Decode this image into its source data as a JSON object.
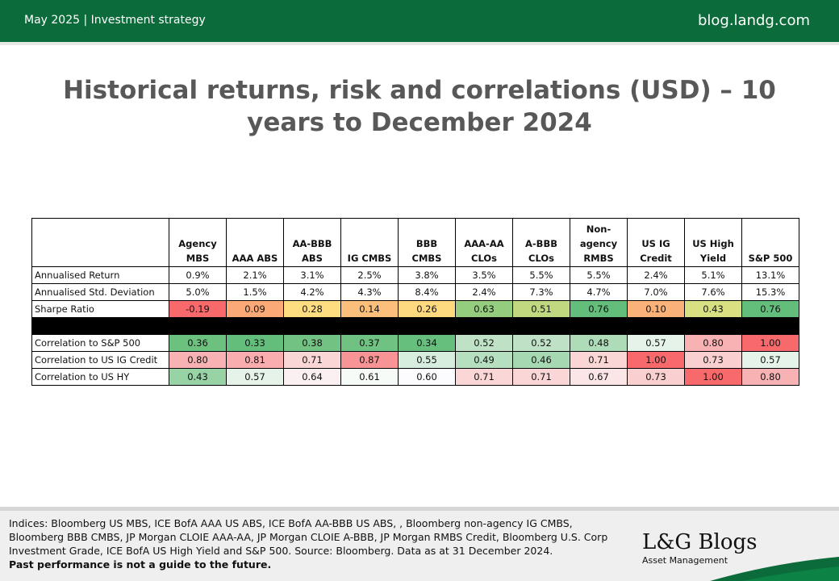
{
  "header": {
    "left_text": "May 2025 | Investment strategy",
    "right_text": "blog.landg.com",
    "brand_color": "#0b6b3a"
  },
  "title": "Historical returns, risk and correlations (USD) – 10 years to December 2024",
  "table": {
    "columns": [
      "Agency MBS",
      "AAA ABS",
      "AA-BBB ABS",
      "IG CMBS",
      "BBB CMBS",
      "AAA-AA CLOs",
      "A-BBB CLOs",
      "Non-agency RMBS",
      "US IG Credit",
      "US High Yield",
      "S&P 500"
    ],
    "rows": [
      {
        "label": "Annualised Return",
        "values": [
          "0.9%",
          "2.1%",
          "3.1%",
          "2.5%",
          "3.8%",
          "3.5%",
          "5.5%",
          "5.5%",
          "2.4%",
          "5.1%",
          "13.1%"
        ],
        "colors": [
          "",
          "",
          "",
          "",
          "",
          "",
          "",
          "",
          "",
          "",
          ""
        ]
      },
      {
        "label": "Annualised Std. Deviation",
        "values": [
          "5.0%",
          "1.5%",
          "4.2%",
          "4.3%",
          "8.4%",
          "2.4%",
          "7.3%",
          "4.7%",
          "7.0%",
          "7.6%",
          "15.3%"
        ],
        "colors": [
          "",
          "",
          "",
          "",
          "",
          "",
          "",
          "",
          "",
          "",
          ""
        ]
      },
      {
        "label": "Sharpe Ratio",
        "values": [
          "-0.19",
          "0.09",
          "0.28",
          "0.14",
          "0.26",
          "0.63",
          "0.51",
          "0.76",
          "0.10",
          "0.43",
          "0.76"
        ],
        "colors": [
          "#f8696b",
          "#fbaa77",
          "#fedd81",
          "#fcbf7b",
          "#fed980",
          "#94cd7e",
          "#c0d980",
          "#63be7b",
          "#fbb279",
          "#d9e082",
          "#63be7b"
        ]
      },
      {
        "label": "",
        "values": [],
        "colors": [],
        "black": true
      },
      {
        "label": "Correlation to S&P 500",
        "values": [
          "0.36",
          "0.33",
          "0.38",
          "0.37",
          "0.34",
          "0.52",
          "0.52",
          "0.48",
          "0.57",
          "0.80",
          "1.00"
        ],
        "colors": [
          "#6cc17f",
          "#63be7b",
          "#72c383",
          "#6fc281",
          "#66bf7d",
          "#bfe2c6",
          "#bfe2c6",
          "#aedbb8",
          "#e6f3e9",
          "#f9b2b3",
          "#f8696b"
        ]
      },
      {
        "label": "Correlation to US IG Credit",
        "values": [
          "0.80",
          "0.81",
          "0.71",
          "0.87",
          "0.55",
          "0.49",
          "0.46",
          "0.71",
          "1.00",
          "0.73",
          "0.57"
        ],
        "colors": [
          "#f9b2b3",
          "#f9adaf",
          "#fad6d7",
          "#f89496",
          "#d7edde",
          "#b6dfc0",
          "#a6d8b2",
          "#fad6d7",
          "#f8696b",
          "#facfd0",
          "#e6f3e9"
        ]
      },
      {
        "label": "Correlation to US HY",
        "values": [
          "0.43",
          "0.57",
          "0.64",
          "0.61",
          "0.60",
          "0.71",
          "0.71",
          "0.67",
          "0.73",
          "1.00",
          "0.80"
        ],
        "colors": [
          "#98d3a6",
          "#e6f3e9",
          "#fbf0f1",
          "#f7fbf8",
          "#fcfcff",
          "#fad6d7",
          "#fad6d7",
          "#fbe5e6",
          "#facfd0",
          "#f8696b",
          "#f9b2b3"
        ]
      }
    ]
  },
  "footer": {
    "notes": "Indices: Bloomberg US MBS, ICE BofA AAA US ABS, ICE BofA AA-BBB US ABS, , Bloomberg non-agency IG CMBS, Bloomberg BBB CMBS, JP Morgan CLOIE AAA-AA, JP Morgan CLOIE A-BBB, JP Morgan RMBS Credit, Bloomberg U.S. Corp Investment Grade, ICE BofA US High Yield and S&P 500. Source: Bloomberg. Data as at 31 December 2024.",
    "disclaimer": "Past performance is not a guide to the future.",
    "logo_text": "L&G Blogs",
    "logo_sub": "Asset Management"
  }
}
